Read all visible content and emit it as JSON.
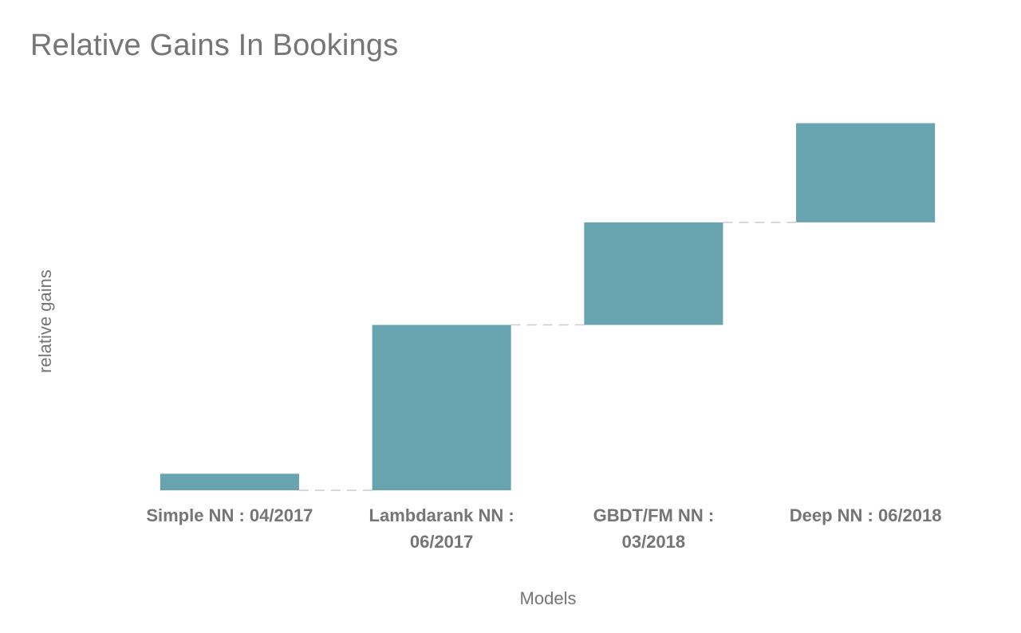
{
  "chart_data": {
    "type": "bar",
    "subtype": "waterfall",
    "title": "Relative Gains In Bookings",
    "xlabel": "Models",
    "ylabel": "relative gains",
    "categories": [
      [
        "Simple NN : 04/2017"
      ],
      [
        "Lambdarank NN :",
        "06/2017"
      ],
      [
        "GBDT/FM NN :",
        "03/2018"
      ],
      [
        "Deep NN : 06/2018"
      ]
    ],
    "values": [
      -0.1,
      1.0,
      0.62,
      0.6
    ],
    "ylim": [
      -0.1,
      2.32
    ],
    "grid": false,
    "legend": "none",
    "bar_color": "#68a4b0",
    "connector_color": "#cccccc",
    "text_color": "#757575"
  }
}
